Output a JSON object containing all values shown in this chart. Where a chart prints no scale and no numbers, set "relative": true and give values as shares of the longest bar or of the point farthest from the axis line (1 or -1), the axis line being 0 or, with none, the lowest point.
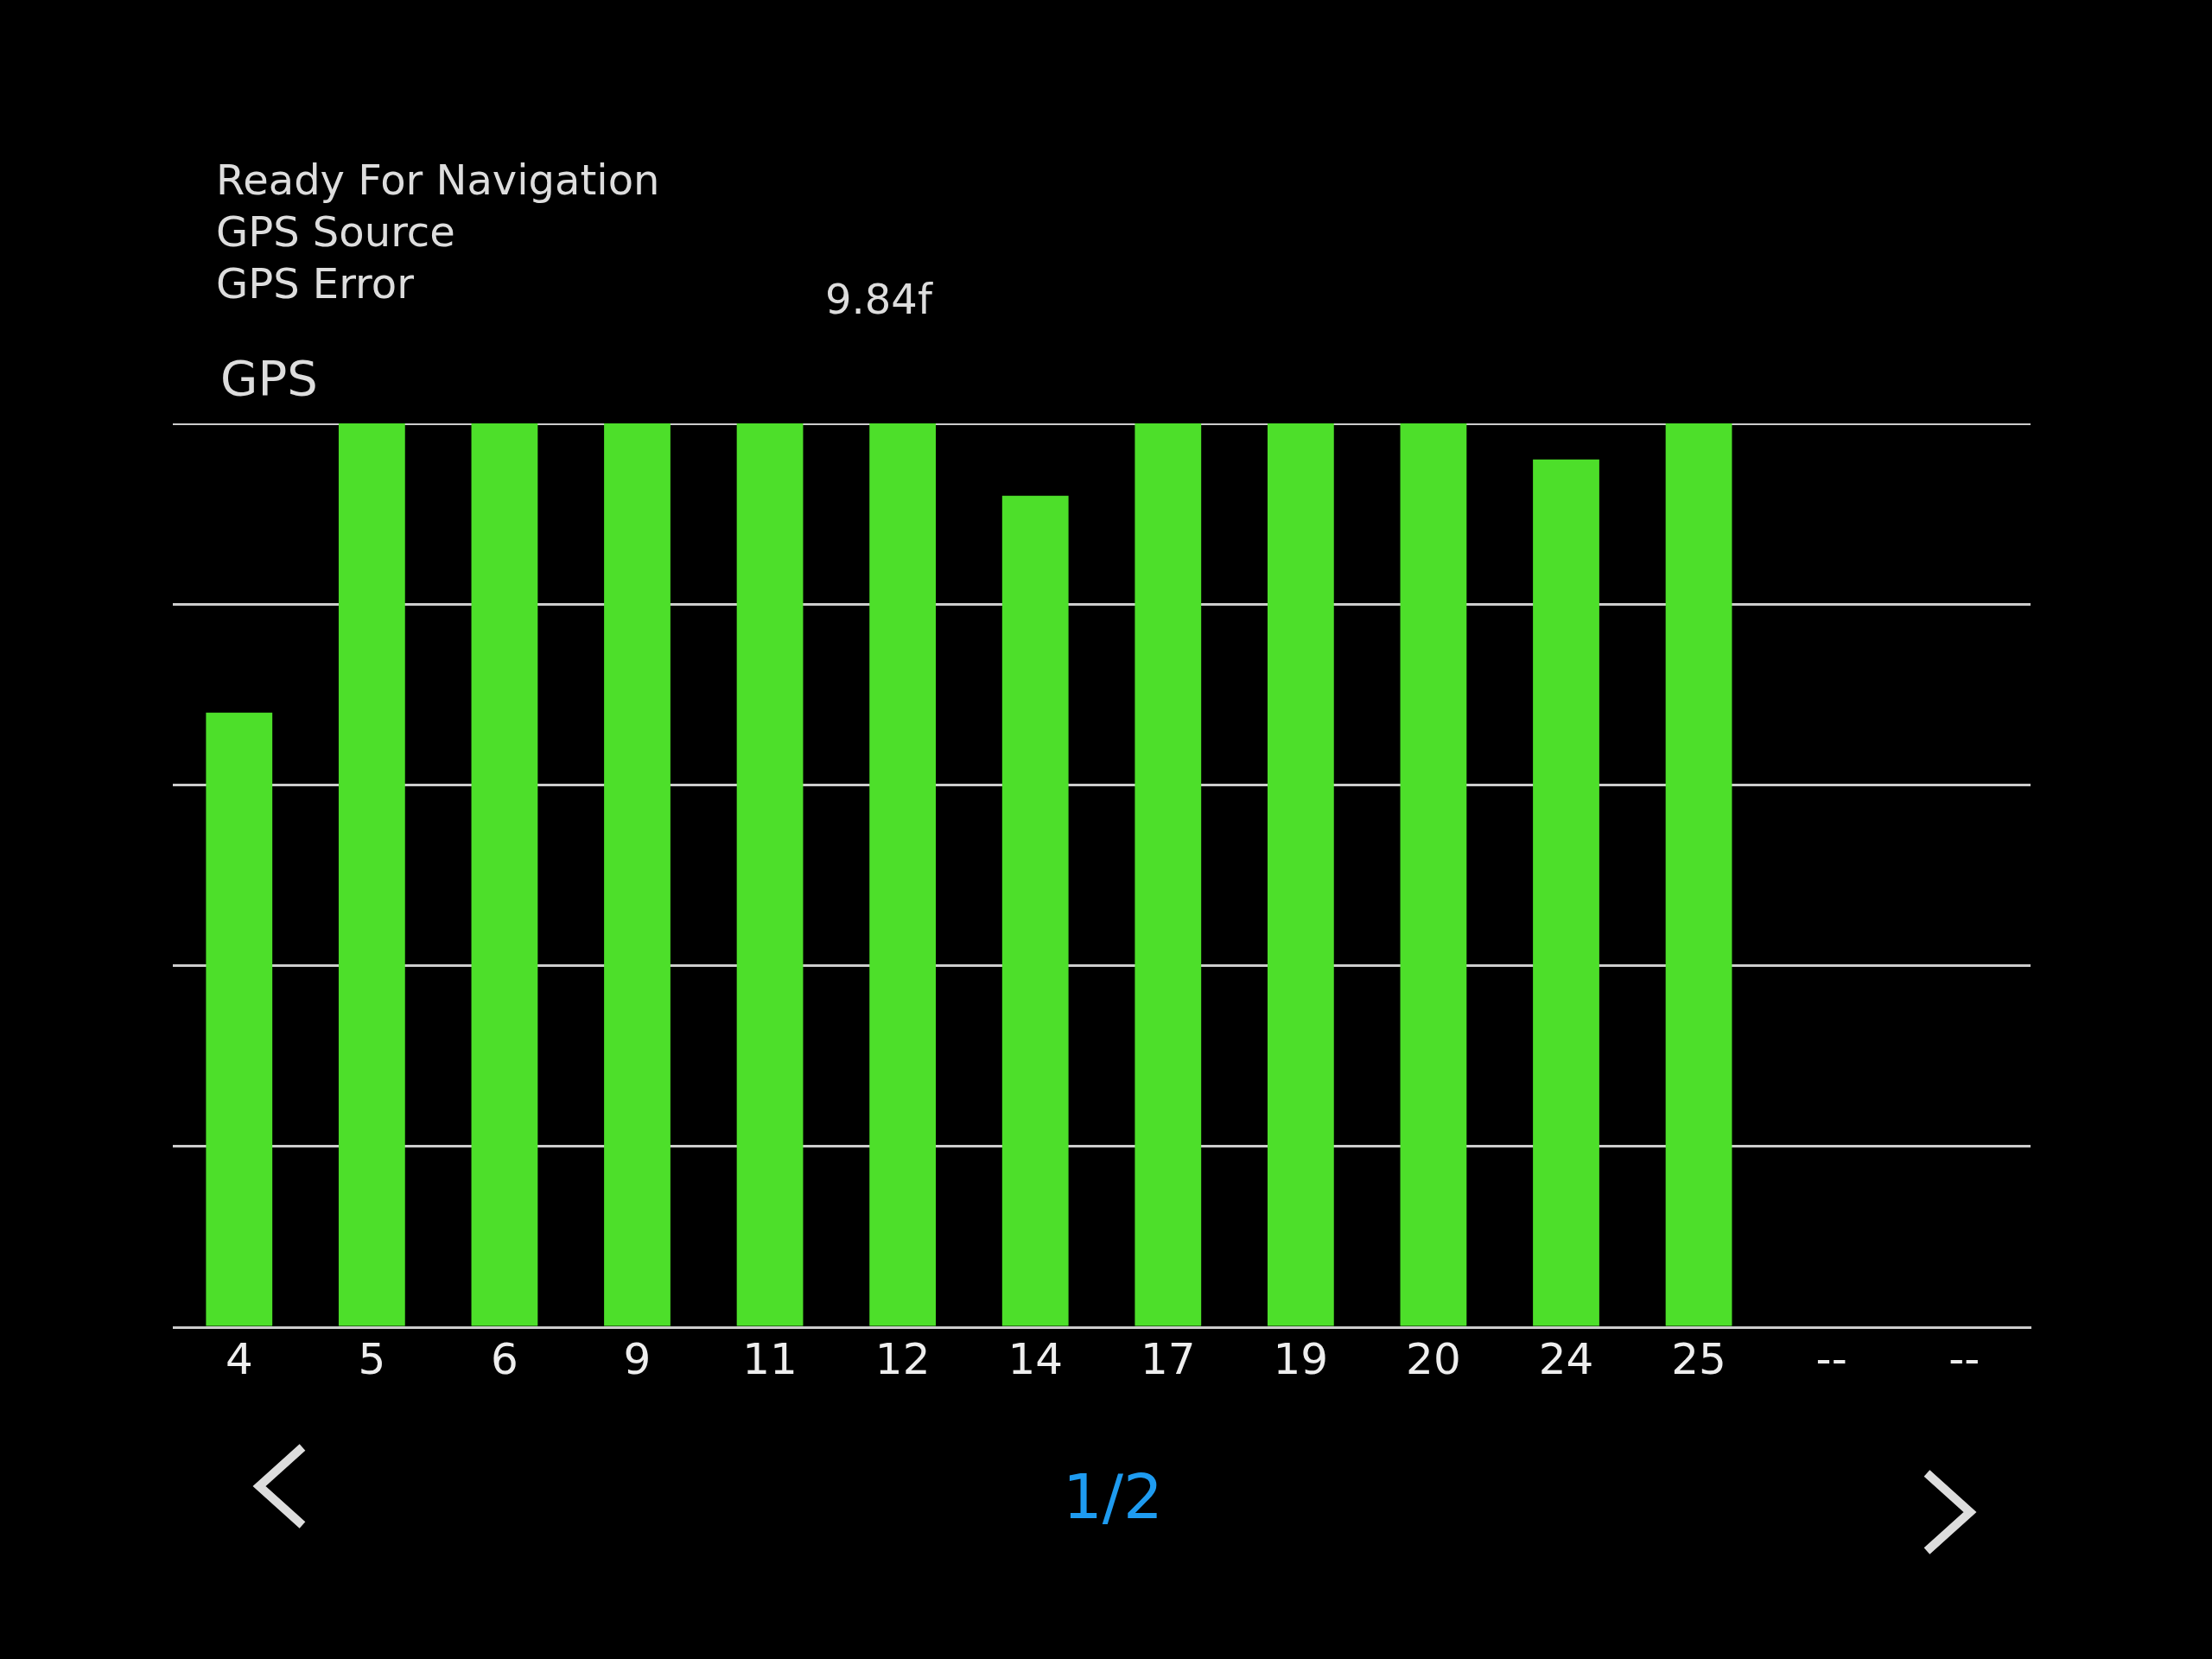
{
  "chart_data": {
    "type": "bar",
    "title": "GPS",
    "relative": true,
    "categories": [
      "4",
      "5",
      "6",
      "9",
      "11",
      "12",
      "14",
      "17",
      "19",
      "20",
      "24",
      "25",
      "--",
      "--"
    ],
    "values": [
      0.68,
      1,
      1,
      1,
      1,
      1,
      0.92,
      1,
      1,
      1,
      0.96,
      1,
      null,
      null
    ],
    "color": "#4ddf2a",
    "grid": "y",
    "legend": false,
    "annotations": [
      "Ready For Navigation",
      "GPS Source",
      "GPS Error",
      "9.84f",
      "1/2"
    ]
  }
}
